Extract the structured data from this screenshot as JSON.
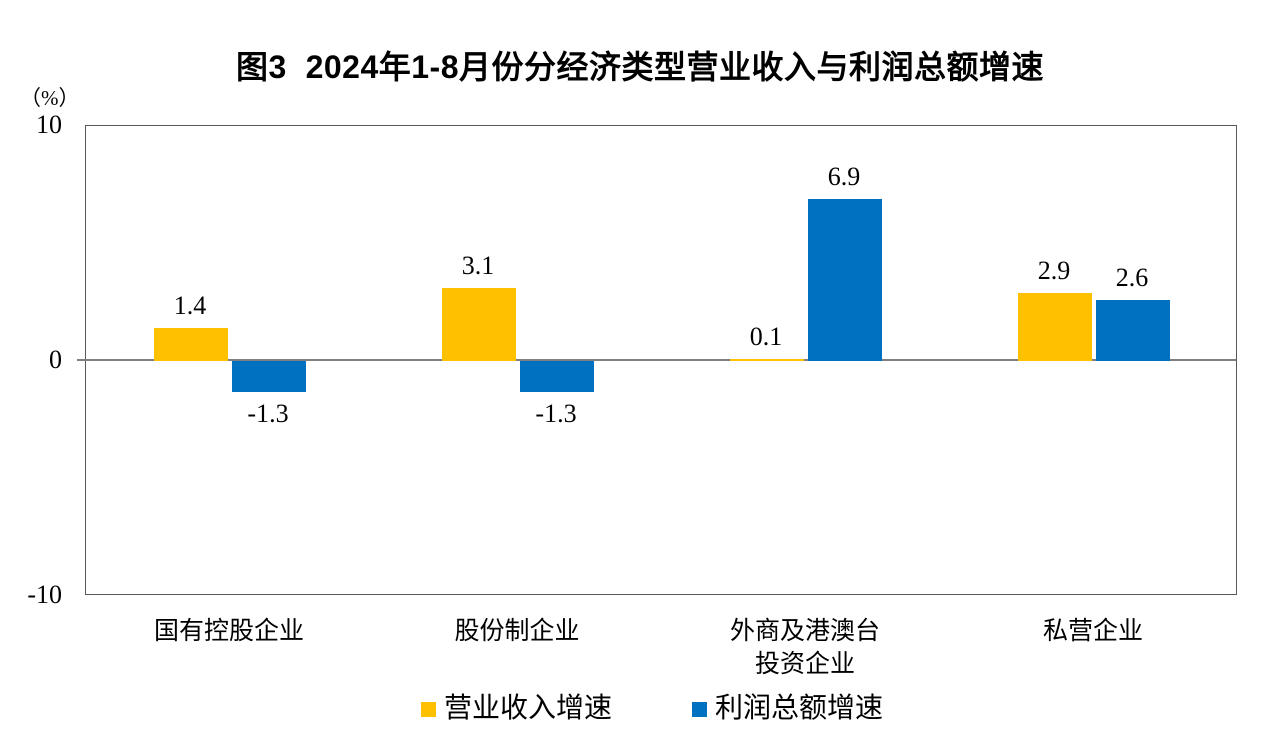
{
  "title": "图3  2024年1-8月份分经济类型营业收入与利润总额增速",
  "y_axis": {
    "unit": "（%）",
    "ticks": [
      {
        "label": "10",
        "value": 10
      },
      {
        "label": "0",
        "value": 0
      },
      {
        "label": "-10",
        "value": -10
      }
    ]
  },
  "chart_data": {
    "type": "bar",
    "title": "图3  2024年1-8月份分经济类型营业收入与利润总额增速",
    "categories": [
      "国有控股企业",
      "股份制企业",
      "外商及港澳台\n投资企业",
      "私营企业"
    ],
    "series": [
      {
        "name": "营业收入增速",
        "key": "revenue-growth",
        "color": "#FFC000",
        "values": [
          1.4,
          3.1,
          0.1,
          2.9
        ]
      },
      {
        "name": "利润总额增速",
        "key": "profit-growth",
        "color": "#0070C0",
        "values": [
          -1.3,
          -1.3,
          6.9,
          2.6
        ]
      }
    ],
    "data_labels": [
      [
        "1.4",
        "3.1",
        "0.1",
        "2.9"
      ],
      [
        "-1.3",
        "-1.3",
        "6.9",
        "2.6"
      ]
    ],
    "ylabel": "（%）",
    "ylim": [
      -10,
      10
    ],
    "ytick_values": [
      10,
      0,
      -10
    ],
    "grid": false,
    "legend_position": "bottom",
    "colors": {
      "zero_line": "#808080",
      "plot_border": "#595959",
      "text": "#000000"
    }
  },
  "legend": {
    "items": [
      {
        "label": "营业收入增速",
        "color": "#FFC000"
      },
      {
        "label": "利润总额增速",
        "color": "#0070C0"
      }
    ]
  }
}
